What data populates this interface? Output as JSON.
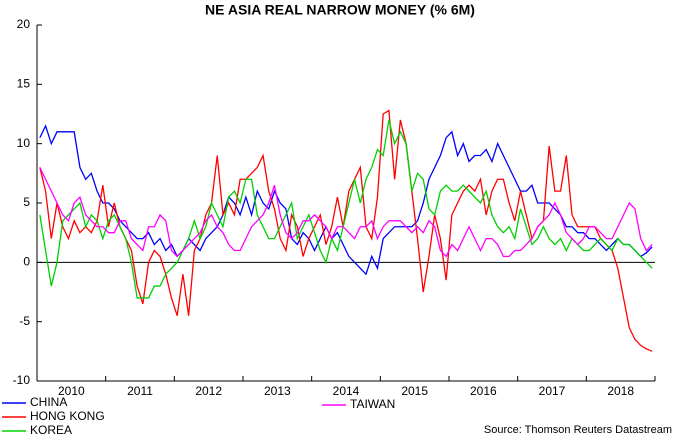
{
  "chart_data": {
    "type": "line",
    "title": "NE ASIA REAL NARROW MONEY (% 6M)",
    "source": "Source: Thomson Reuters Datastream",
    "categories": [
      null,
      null,
      null,
      null,
      null,
      null,
      "2010",
      null,
      null,
      null,
      null,
      null,
      null,
      null,
      null,
      null,
      null,
      null,
      "2011",
      null,
      null,
      null,
      null,
      null,
      null,
      null,
      null,
      null,
      null,
      null,
      "2012",
      null,
      null,
      null,
      null,
      null,
      null,
      null,
      null,
      null,
      null,
      null,
      "2013",
      null,
      null,
      null,
      null,
      null,
      null,
      null,
      null,
      null,
      null,
      null,
      "2014",
      null,
      null,
      null,
      null,
      null,
      null,
      null,
      null,
      null,
      null,
      null,
      "2015",
      null,
      null,
      null,
      null,
      null,
      null,
      null,
      null,
      null,
      null,
      null,
      "2016",
      null,
      null,
      null,
      null,
      null,
      null,
      null,
      null,
      null,
      null,
      null,
      "2017",
      null,
      null,
      null,
      null,
      null,
      null,
      null,
      null,
      null,
      null,
      null,
      "2018",
      null,
      null,
      null,
      null,
      null
    ],
    "ylim": [
      -10,
      20
    ],
    "yticks": [
      -10,
      -5,
      0,
      5,
      10,
      15,
      20
    ],
    "series": [
      {
        "name": "CHINA",
        "color": "#0000ff",
        "values": [
          10.5,
          11.5,
          10,
          11,
          11,
          11,
          11,
          8,
          7,
          7.5,
          6,
          5,
          5,
          4.5,
          3.5,
          3,
          2.5,
          2,
          2,
          2.5,
          1.5,
          2,
          1,
          1.5,
          0.5,
          1,
          2,
          1.5,
          1,
          2,
          2.5,
          3,
          4,
          5.5,
          5,
          4,
          5.5,
          4,
          6,
          5,
          4.5,
          6,
          5,
          4.5,
          2,
          1.5,
          2.5,
          2,
          1,
          2,
          3,
          2,
          2.5,
          1.5,
          0.5,
          0,
          -0.5,
          -1,
          0.5,
          -0.5,
          2,
          2.5,
          3,
          3,
          3,
          3,
          3.5,
          5,
          7,
          8,
          9,
          10.5,
          11,
          9,
          10,
          8.5,
          9,
          9,
          9.5,
          8.5,
          10,
          9,
          8,
          7,
          6,
          6,
          6.5,
          5,
          5,
          5,
          4.5,
          4,
          3,
          3,
          2.5,
          2.5,
          2,
          2,
          1.5,
          1,
          1.5,
          2,
          1.5,
          1.5,
          1,
          0.5,
          0.8,
          1.3
        ]
      },
      {
        "name": "HONG KONG",
        "color": "#ff0000",
        "values": [
          8,
          6,
          2,
          5,
          3,
          2,
          3.5,
          2.5,
          3,
          2.5,
          3.5,
          6.5,
          3,
          5,
          3,
          2,
          1,
          -2,
          -3.5,
          0,
          1,
          0.5,
          -1,
          -3,
          -4.5,
          -1,
          -4.5,
          1,
          2,
          4,
          5,
          9,
          4,
          5,
          4,
          7,
          7,
          7.5,
          8,
          9,
          6,
          4.5,
          2,
          1,
          4,
          3,
          0.5,
          2,
          3,
          4,
          1.5,
          3,
          5.5,
          3,
          6,
          7,
          8,
          3,
          2,
          5.5,
          12.5,
          12.8,
          7,
          12,
          10,
          6,
          2,
          -2.5,
          0.5,
          4,
          2,
          -1.5,
          4,
          5,
          6,
          6.5,
          6,
          7,
          4,
          6,
          7,
          7,
          5,
          3.5,
          6,
          4,
          2,
          3,
          3.5,
          9.8,
          6,
          6,
          9,
          4,
          3,
          3,
          3,
          3,
          2,
          1.5,
          1,
          -0.5,
          -3,
          -5.5,
          -6.5,
          -7,
          -7.3,
          -7.5
        ]
      },
      {
        "name": "KOREA",
        "color": "#00d000",
        "values": [
          4,
          1,
          -2,
          0,
          3.5,
          4,
          4.5,
          5,
          3,
          4,
          3.5,
          2,
          3.5,
          4,
          3,
          2,
          0,
          -3,
          -3,
          -3,
          -2,
          -2,
          -1,
          -0.5,
          0,
          1,
          2,
          3.5,
          2,
          3,
          5,
          4,
          3,
          5.5,
          6,
          5,
          7,
          7,
          4,
          3,
          2,
          2,
          3,
          4,
          5,
          2,
          3,
          4,
          2.5,
          1,
          0,
          2,
          1,
          3,
          5,
          7,
          5,
          7,
          8,
          9.5,
          9,
          12,
          10,
          11,
          10,
          6,
          7.5,
          7,
          4.5,
          4,
          6,
          6.5,
          6,
          6,
          6.5,
          6,
          5.5,
          5,
          6,
          4,
          3,
          2.5,
          3,
          2,
          4.5,
          3,
          1.5,
          2,
          3,
          2,
          1.5,
          2,
          1,
          2,
          1.5,
          1,
          1,
          1.5,
          2,
          1.5,
          1,
          2,
          1.5,
          1.5,
          1,
          0.5,
          0,
          -0.5
        ]
      },
      {
        "name": "TAIWAN",
        "color": "#ff00ff",
        "values": [
          8,
          7,
          6,
          5,
          4,
          3.5,
          5,
          5.5,
          4,
          3.5,
          3,
          3,
          2.5,
          2.5,
          3.5,
          3.5,
          2,
          1.5,
          1,
          3,
          3,
          4,
          3.5,
          1,
          0.5,
          1,
          1.5,
          2,
          2.5,
          3.5,
          4,
          3,
          2.5,
          1.5,
          1,
          1,
          2,
          3,
          3.5,
          4,
          5,
          6.5,
          4,
          2.5,
          2,
          2.5,
          3.5,
          3.5,
          4,
          3.5,
          3,
          2,
          3,
          3,
          2.5,
          2,
          3,
          3,
          3.5,
          2,
          3,
          3.5,
          3.5,
          3.5,
          3,
          2.5,
          3,
          2.5,
          3.5,
          3,
          1,
          0.5,
          1.5,
          1,
          2,
          3,
          2,
          1,
          2,
          2,
          1.5,
          0.5,
          0.5,
          1,
          1,
          1.5,
          2,
          3,
          3.5,
          4,
          5,
          4,
          2.5,
          2,
          1.5,
          2,
          3,
          3,
          2.5,
          2,
          2,
          3,
          4,
          5,
          4.5,
          2,
          1,
          1.5
        ]
      }
    ]
  }
}
